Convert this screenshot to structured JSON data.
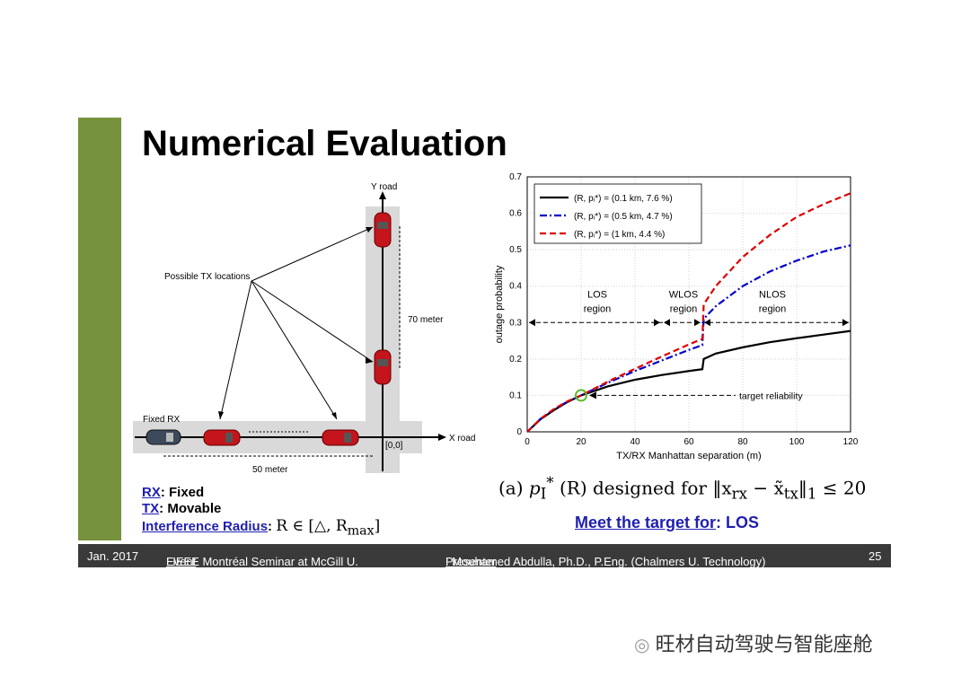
{
  "slide": {
    "title": "Numerical Evaluation",
    "colors": {
      "accent_bar": "#76923c",
      "footer_bg": "#3a3a3a",
      "link_blue": "#1f1fb0"
    }
  },
  "diagram": {
    "y_road_label": "Y road",
    "x_road_label": "X road",
    "tx_locations_label": "Possible TX locations",
    "fixed_rx_label": "Fixed RX",
    "distance_vertical": "70 meter",
    "distance_horizontal": "50 meter",
    "origin_label": "[0,0]"
  },
  "legend_block": {
    "rx_key": "RX",
    "rx_value": ": Fixed",
    "tx_key": "TX",
    "tx_value": ": Movable",
    "ir_key": "Interference Radius",
    "ir_colon": ":",
    "ir_formula": "R ∈ [△, R",
    "ir_formula_sub": "max",
    "ir_formula_end": "]"
  },
  "caption": {
    "prefix": "(a) ",
    "text": "p",
    "sub": "I",
    "sup": "*",
    "rest": " (R) designed for ‖x",
    "rest_sub1": "rx",
    "rest2": " − x̃",
    "rest_sub2": "tx",
    "rest3": "‖",
    "rest_sub3": "1",
    "rest4": " ≤ 20"
  },
  "meet_target": {
    "underlined": "Meet the target for",
    "rest": ": LOS"
  },
  "footer": {
    "date": "Jan. 2017",
    "event_key": "Event",
    "event_value": ": IEEE Montréal Seminar at McGill U.",
    "presenter_key": "Presenter",
    "presenter_value": ": Mouhamed Abdulla, Ph.D., P.Eng. (Chalmers U. Technology)",
    "page": "25"
  },
  "watermark": "旺材自动驾驶与智能座舱",
  "chart_data": {
    "type": "line",
    "xlabel": "TX/RX Manhattan separation (m)",
    "ylabel": "outage probability",
    "xlim": [
      0,
      120
    ],
    "ylim": [
      0,
      0.7
    ],
    "xticks": [
      0,
      20,
      40,
      60,
      80,
      100,
      120
    ],
    "yticks": [
      0,
      0.1,
      0.2,
      0.3,
      0.4,
      0.5,
      0.6,
      0.7
    ],
    "grid": true,
    "legend_position": "top-left",
    "series": [
      {
        "name": "(R, p_I*) = (0.1 km, 7.6 %)",
        "color": "#000000",
        "dash": "solid",
        "x": [
          0,
          5,
          10,
          15,
          20,
          30,
          40,
          50,
          60,
          65,
          65.5,
          70,
          80,
          90,
          100,
          110,
          120
        ],
        "y": [
          0,
          0.035,
          0.06,
          0.082,
          0.1,
          0.125,
          0.143,
          0.156,
          0.167,
          0.172,
          0.2,
          0.215,
          0.232,
          0.246,
          0.257,
          0.267,
          0.277
        ]
      },
      {
        "name": "(R, p_I*) = (0.5 km, 4.7 %)",
        "color": "#0000cc",
        "dash": "dashdot",
        "x": [
          0,
          5,
          10,
          15,
          20,
          30,
          40,
          50,
          60,
          65,
          65.5,
          70,
          80,
          90,
          100,
          110,
          120
        ],
        "y": [
          0,
          0.036,
          0.062,
          0.083,
          0.1,
          0.135,
          0.167,
          0.196,
          0.225,
          0.238,
          0.31,
          0.345,
          0.4,
          0.44,
          0.47,
          0.495,
          0.512
        ]
      },
      {
        "name": "(R, p_I*) = (1 km, 4.4 %)",
        "color": "#dd0000",
        "dash": "dashed",
        "x": [
          0,
          5,
          10,
          15,
          20,
          30,
          40,
          50,
          60,
          65,
          65.5,
          70,
          80,
          90,
          100,
          110,
          120
        ],
        "y": [
          0,
          0.036,
          0.063,
          0.084,
          0.1,
          0.138,
          0.173,
          0.207,
          0.24,
          0.255,
          0.35,
          0.4,
          0.48,
          0.54,
          0.59,
          0.625,
          0.655
        ]
      }
    ],
    "regions": [
      {
        "label": "LOS",
        "label2": "region",
        "x_center": 26
      },
      {
        "label": "WLOS",
        "label2": "region",
        "x_center": 58
      },
      {
        "label": "NLOS",
        "label2": "region",
        "x_center": 91
      }
    ],
    "region_bounds": [
      0,
      50,
      65,
      120
    ],
    "region_arrow_y": 0.3,
    "annotation": {
      "text": "target reliability",
      "x": 20,
      "y": 0.1,
      "text_x": 80
    }
  }
}
